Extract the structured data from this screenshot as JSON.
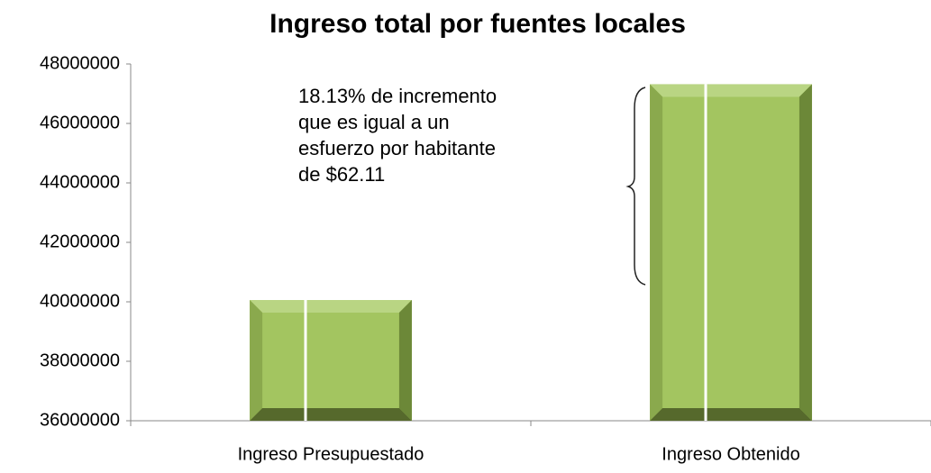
{
  "chart_data": {
    "type": "bar",
    "title": "Ingreso total por fuentes locales",
    "categories": [
      "Ingreso Presupuestado",
      "Ingreso Obtenido"
    ],
    "values": [
      40060000,
      47320000
    ],
    "color": "#a3c560",
    "ylim": [
      36000000,
      48000000
    ],
    "yticks": [
      36000000,
      38000000,
      40000000,
      42000000,
      44000000,
      46000000,
      48000000
    ],
    "annotation": "18.13% de incremento que es igual a un esfuerzo por habitante de $62.11"
  }
}
